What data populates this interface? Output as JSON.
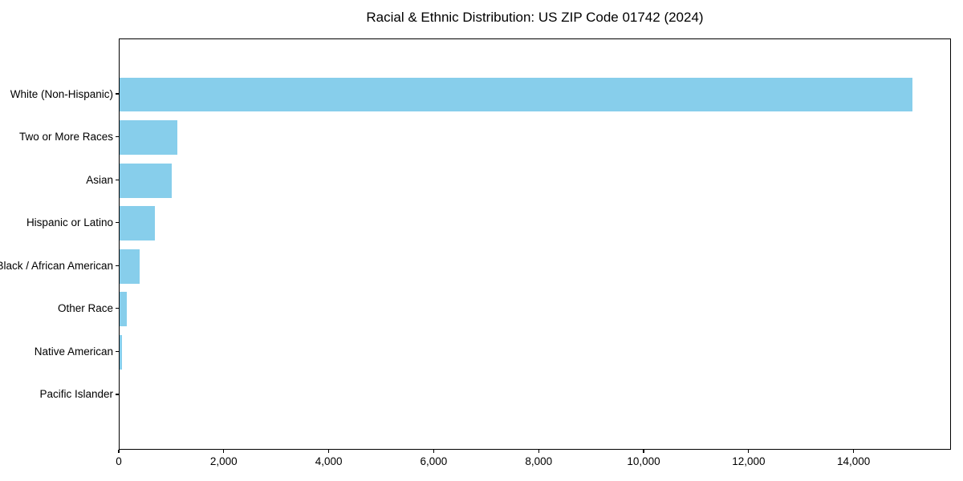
{
  "chart_data": {
    "type": "bar",
    "orientation": "horizontal",
    "title": "Racial & Ethnic Distribution: US ZIP Code 01742 (2024)",
    "categories": [
      "White (Non-Hispanic)",
      "Two or More Races",
      "Asian",
      "Hispanic or Latino",
      "Black / African American",
      "Other Race",
      "Native American",
      "Pacific Islander"
    ],
    "values": [
      15100,
      1100,
      1000,
      670,
      375,
      130,
      45,
      0
    ],
    "xlabel": "",
    "ylabel": "",
    "xlim": [
      0,
      15855
    ],
    "xticks": [
      0,
      2000,
      4000,
      6000,
      8000,
      10000,
      12000,
      14000
    ],
    "xtick_labels": [
      "0",
      "2,000",
      "4,000",
      "6,000",
      "8,000",
      "10,000",
      "12,000",
      "14,000"
    ],
    "bar_color": "#87CEEB",
    "grid": false,
    "legend": null,
    "background_color": "#ffffff",
    "spine_color": "#000000"
  }
}
